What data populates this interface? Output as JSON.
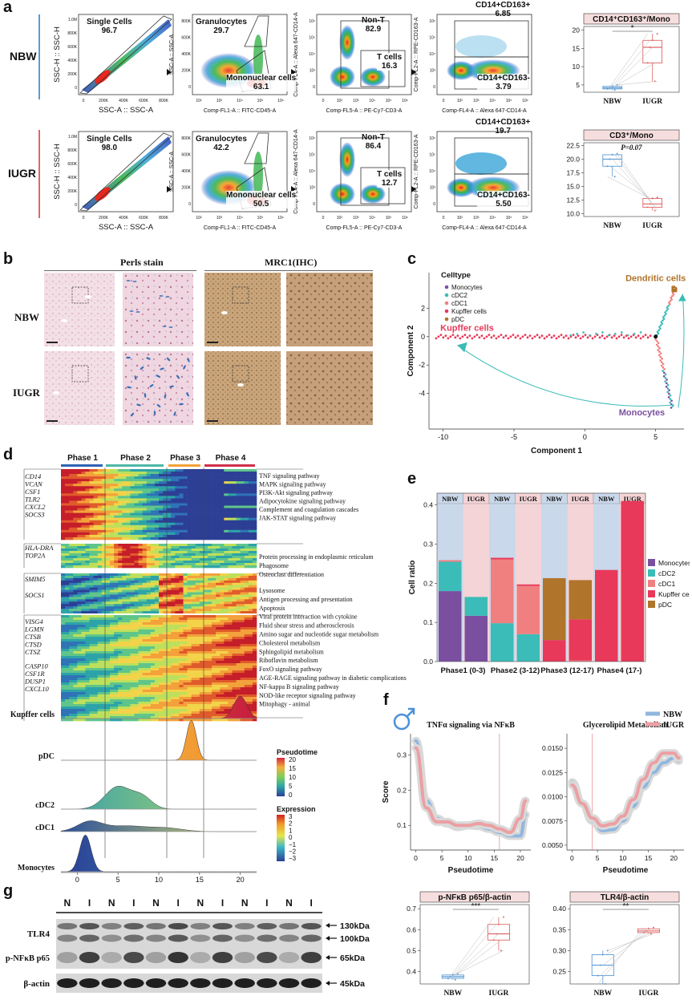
{
  "panel_labels": {
    "a": "a",
    "b": "b",
    "c": "c",
    "d": "d",
    "e": "e",
    "f": "f",
    "g": "g"
  },
  "groups": {
    "nbw": "NBW",
    "iugr": "IUGR"
  },
  "panel_a": {
    "gates": [
      {
        "row": "NBW",
        "plot": 1,
        "gate_name": "Single Cells",
        "value": "96.7",
        "xaxis": "SSC-A :: SSC-A",
        "yaxis": "SSC-H :: SSC-H"
      },
      {
        "row": "NBW",
        "plot": 2,
        "gate_name": "Granulocytes",
        "value": "29.7",
        "gate2_name": "Mononuclear cells",
        "value2": "63.1",
        "xaxis": "Comp-FL1-A :: FITC-CD45-A",
        "yaxis": "SSC-A :: SSC-A"
      },
      {
        "row": "NBW",
        "plot": 3,
        "gate_name": "Non-T",
        "value": "82.9",
        "gate2_name": "T cells",
        "value2": "16.3",
        "xaxis": "Comp-FL5-A :: PE-Cy7-CD3-A",
        "yaxis": "Comp-FL4-A :: Alexa 647-CD14-A"
      },
      {
        "row": "NBW",
        "plot": 4,
        "gate_name": "CD14+CD163+",
        "value": "6.85",
        "gate2_name": "CD14+CD163-",
        "value2": "3.79",
        "xaxis": "Comp-FL4-A :: Alexa 647-CD14-A",
        "yaxis": "Comp-FL2-A :: RPE-CD163-A"
      },
      {
        "row": "IUGR",
        "plot": 1,
        "gate_name": "Single Cells",
        "value": "98.0",
        "xaxis": "SSC-A :: SSC-A",
        "yaxis": "SSC-H :: SSC-H"
      },
      {
        "row": "IUGR",
        "plot": 2,
        "gate_name": "Granulocytes",
        "value": "42.2",
        "gate2_name": "Mononuclear cells",
        "value2": "50.5",
        "xaxis": "Comp-FL1-A :: FITC-CD45-A",
        "yaxis": "SSC-A :: SSC-A"
      },
      {
        "row": "IUGR",
        "plot": 3,
        "gate_name": "Non-T",
        "value": "86.4",
        "gate2_name": "T cells",
        "value2": "12.7",
        "xaxis": "Comp-FL5-A :: PE-Cy7-CD3-A",
        "yaxis": "Comp-FL4-A :: Alexa 647-CD14-A"
      },
      {
        "row": "IUGR",
        "plot": 4,
        "gate_name": "CD14+CD163+",
        "value": "19.7",
        "gate2_name": "CD14+CD163-",
        "value2": "5.50",
        "xaxis": "Comp-FL4-A :: Alexa 647-CD14-A",
        "yaxis": "Comp-FL2-A :: RPE-CD163-A"
      }
    ],
    "box1_title": "CD14⁺CD163⁺/Mono",
    "box1_sig": "*",
    "box2_title": "CD3⁺/Mono",
    "box2_p": "P=0.07"
  },
  "panel_b": {
    "stain1": "Perls stain",
    "stain2": "MRC1(IHC)"
  },
  "panel_d": {
    "phases": [
      "Phase 1",
      "Phase 2",
      "Phase 3",
      "Phase 4"
    ],
    "genes_g1": [
      "CD14",
      "VCAN",
      "CSF1",
      "TLR2",
      "CXCL2",
      "SOCS3"
    ],
    "genes_g2": [
      "HLA-DRA",
      "TOP2A"
    ],
    "genes_g3": [
      "SMIM5",
      "SOCS1"
    ],
    "genes_g4": [
      "VISG4",
      "LGMN",
      "CTSB",
      "CTSD",
      "CTSZ",
      "CASP10",
      "CSF1R",
      "DUSP1",
      "CXCL10"
    ],
    "path_g1": [
      "TNF signaling pathway",
      "MAPK signaling pathway",
      "PI3K-Akt signaling pathway",
      "Adipocytokine signaling pathway",
      "Complement and coagulation cascades",
      "JAK-STAT signaling pathway"
    ],
    "path_g3": [
      "Protein processing in endoplasmic reticulum",
      "Phagosome",
      "Osteoclast differentiation"
    ],
    "path_g4": [
      "Lysosome",
      "Antigen processing and presentation",
      "Apoptosis",
      "Viral protein interaction with cytokine",
      "Fluid shear stress and atherosclerosis",
      "Amino sugar and nucleotide sugar metabolism",
      "Cholesterol metabolism",
      "Sphingolipid metabolism",
      "Riboflavin metabolism",
      "FoxO signaling pathway",
      "AGE-RAGE signaling pathway in diabetic complications",
      "NF-kappa B signaling pathway",
      "NOD-like receptor signaling pathway",
      "Mitophagy - animal"
    ],
    "legend_pseudotime": "Pseudotime",
    "legend_expression": "Expression",
    "xlabel": "Pseudotime"
  },
  "chart_data": [
    {
      "type": "box",
      "id": "a_CD14CD163",
      "title": "CD14⁺CD163⁺/Mono",
      "categories": [
        "NBW",
        "IUGR"
      ],
      "series": [
        {
          "name": "NBW",
          "median": 4.2,
          "q1": 3.9,
          "q3": 4.6,
          "min": 3.6,
          "max": 5.0,
          "color": "#5b9bd5"
        },
        {
          "name": "IUGR",
          "median": 15.3,
          "q1": 11.0,
          "q3": 17.2,
          "min": 6.0,
          "max": 19.0,
          "color": "#e06666"
        }
      ],
      "yticks": [
        5,
        10,
        15,
        20
      ],
      "ylim": [
        3,
        21
      ]
    },
    {
      "type": "box",
      "id": "a_CD3",
      "title": "CD3⁺/Mono",
      "categories": [
        "NBW",
        "IUGR"
      ],
      "series": [
        {
          "name": "NBW",
          "median": 20.0,
          "q1": 18.7,
          "q3": 20.8,
          "min": 16.8,
          "max": 21.0,
          "color": "#5b9bd5"
        },
        {
          "name": "IUGR",
          "median": 11.8,
          "q1": 11.2,
          "q3": 12.8,
          "min": 10.6,
          "max": 13.0,
          "color": "#e06666"
        }
      ],
      "yticks": [
        10.0,
        12.5,
        15.0,
        17.5,
        20.0,
        22.5
      ],
      "ylim": [
        9.5,
        23
      ]
    },
    {
      "type": "scatter",
      "id": "c_trajectory",
      "xlabel": "Component 1",
      "ylabel": "Component 2",
      "xticks": [
        -10,
        -5,
        0,
        5
      ],
      "yticks": [
        -4,
        -2,
        0,
        2
      ],
      "xlim": [
        -11,
        7
      ],
      "ylim": [
        -6.5,
        4.5
      ],
      "legend_title": "Celltype",
      "series": [
        {
          "name": "Monocytes",
          "color": "#7b4fa0"
        },
        {
          "name": "cDC2",
          "color": "#3bbcb8"
        },
        {
          "name": "cDC1",
          "color": "#f08080"
        },
        {
          "name": "Kupffer cells",
          "color": "#e8395a"
        },
        {
          "name": "pDC",
          "color": "#b0742a"
        }
      ],
      "annotations": [
        "Dendritic cells",
        "Kupffer cells",
        "Monocytes"
      ]
    },
    {
      "type": "bar",
      "id": "e_cell_ratio",
      "stacked": true,
      "ylabel": "Cell ratio",
      "ylim": [
        0,
        0.43
      ],
      "yticks": [
        0.0,
        0.1,
        0.2,
        0.3,
        0.4
      ],
      "phase_labels": [
        "Phase1 (0-3)",
        "Phase2 (3-12)",
        "Phase3 (12-17)",
        "Phase4 (17-)"
      ],
      "categories": [
        "NBW",
        "IUGR",
        "NBW",
        "IUGR",
        "NBW",
        "IUGR",
        "NBW",
        "IUGR"
      ],
      "series": [
        {
          "name": "Monocytes",
          "color": "#7b4fa0",
          "values": [
            0.18,
            0.117,
            0.0,
            0.0,
            0.0,
            0.0,
            0.0,
            0.0
          ]
        },
        {
          "name": "cDC2",
          "color": "#3bbcb8",
          "values": [
            0.075,
            0.048,
            0.098,
            0.07,
            0.0,
            0.0,
            0.0,
            0.0
          ]
        },
        {
          "name": "cDC1",
          "color": "#f08080",
          "values": [
            0.004,
            0.0,
            0.163,
            0.123,
            0.0,
            0.003,
            0.0,
            0.0
          ]
        },
        {
          "name": "Kupffer cells",
          "color": "#e8395a",
          "values": [
            0.0,
            0.0,
            0.004,
            0.004,
            0.055,
            0.105,
            0.234,
            0.41
          ]
        },
        {
          "name": "pDC",
          "color": "#b0742a",
          "values": [
            0.0,
            0.0,
            0.0,
            0.0,
            0.158,
            0.1,
            0.0,
            0.0
          ]
        }
      ],
      "bg_colors": [
        "#c9d8ea",
        "#f4d4d6"
      ]
    },
    {
      "type": "line",
      "id": "f_tnfa",
      "title": "TNFα signaling via NFκB",
      "xlabel": "Pseudotime",
      "ylabel": "Score",
      "xticks": [
        0,
        5,
        10,
        15,
        20
      ],
      "yticks": [
        0.1,
        0.2,
        0.3
      ],
      "xlim": [
        -1,
        22
      ],
      "ylim": [
        0.03,
        0.36
      ],
      "vline": 16,
      "series": [
        {
          "name": "NBW",
          "color": "#8fb7df",
          "x": [
            0,
            2,
            4,
            6,
            8,
            10,
            12,
            14,
            16,
            18,
            20,
            21
          ],
          "y": [
            0.34,
            0.17,
            0.12,
            0.105,
            0.095,
            0.1,
            0.098,
            0.09,
            0.08,
            0.07,
            0.07,
            0.13
          ]
        },
        {
          "name": "IUGR",
          "color": "#ec9fa3",
          "x": [
            0,
            2,
            4,
            6,
            8,
            10,
            12,
            14,
            16,
            18,
            20,
            21
          ],
          "y": [
            0.32,
            0.15,
            0.11,
            0.11,
            0.1,
            0.1,
            0.105,
            0.1,
            0.09,
            0.08,
            0.12,
            0.17
          ]
        }
      ]
    },
    {
      "type": "line",
      "id": "f_glycerolipid",
      "title": "Glycerolipid Metabolism",
      "xlabel": "Pseudotime",
      "xticks": [
        0,
        5,
        10,
        15,
        20
      ],
      "yticks": [
        0.005,
        0.0075,
        0.01,
        0.0125,
        0.015
      ],
      "ytick_labels": [
        "0.0050",
        "0.0075",
        "0.0100",
        "0.0125",
        "0.0150"
      ],
      "xlim": [
        -1,
        22
      ],
      "ylim": [
        0.0045,
        0.0165
      ],
      "vline": 4,
      "series": [
        {
          "name": "NBW",
          "color": "#8fb7df",
          "x": [
            0,
            2,
            4,
            6,
            8,
            10,
            12,
            14,
            16,
            18,
            20,
            21
          ],
          "y": [
            0.0115,
            0.0093,
            0.0075,
            0.0065,
            0.0066,
            0.0075,
            0.009,
            0.011,
            0.0125,
            0.0135,
            0.014,
            0.0137
          ]
        },
        {
          "name": "IUGR",
          "color": "#ec9fa3",
          "x": [
            0,
            2,
            4,
            6,
            8,
            10,
            12,
            14,
            16,
            18,
            20,
            21
          ],
          "y": [
            0.0112,
            0.0093,
            0.0078,
            0.007,
            0.0072,
            0.008,
            0.0097,
            0.0118,
            0.0135,
            0.0145,
            0.0145,
            0.014
          ]
        }
      ],
      "legend": [
        "NBW",
        "IUGR"
      ]
    },
    {
      "type": "box",
      "id": "g_pNFkB",
      "title": "p-NFκB p65/β-actin",
      "sig": "***",
      "categories": [
        "NBW",
        "IUGR"
      ],
      "series": [
        {
          "name": "NBW",
          "median": 0.375,
          "q1": 0.367,
          "q3": 0.383,
          "min": 0.36,
          "max": 0.39,
          "color": "#5b9bd5"
        },
        {
          "name": "IUGR",
          "median": 0.58,
          "q1": 0.55,
          "q3": 0.625,
          "min": 0.5,
          "max": 0.66,
          "color": "#e06666"
        }
      ],
      "yticks": [
        0.4,
        0.5,
        0.6,
        0.7
      ],
      "ylim": [
        0.34,
        0.72
      ]
    },
    {
      "type": "box",
      "id": "g_TLR4",
      "title": "TLR4/β-actin",
      "sig": "**",
      "categories": [
        "NBW",
        "IUGR"
      ],
      "series": [
        {
          "name": "NBW",
          "median": 0.265,
          "q1": 0.24,
          "q3": 0.29,
          "min": 0.22,
          "max": 0.3,
          "color": "#5b9bd5"
        },
        {
          "name": "IUGR",
          "median": 0.347,
          "q1": 0.343,
          "q3": 0.352,
          "min": 0.34,
          "max": 0.355,
          "color": "#e06666"
        }
      ],
      "yticks": [
        0.25,
        0.3,
        0.35,
        0.4
      ],
      "ylim": [
        0.22,
        0.41
      ]
    }
  ],
  "panel_g": {
    "lanes": [
      "N",
      "I",
      "N",
      "I",
      "N",
      "I",
      "N",
      "I",
      "N",
      "I",
      "N",
      "I"
    ],
    "rows": [
      "TLR4",
      "p-NFκB p65",
      "β-actin"
    ],
    "sizes": [
      "130kDa",
      "100kDa",
      "65kDa",
      "45kDa"
    ]
  }
}
